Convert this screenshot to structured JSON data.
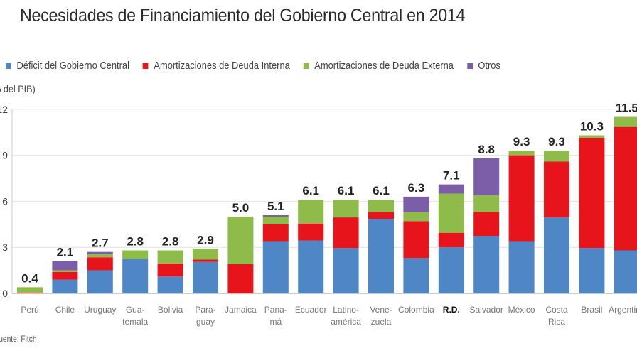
{
  "chart_data": {
    "type": "bar",
    "stacked": true,
    "title": "Necesidades de Financiamiento del Gobierno Central en 2014",
    "ylabel": "(% del PIB)",
    "source": "Fuente: Fitch",
    "ylim": [
      0,
      12
    ],
    "yticks": [
      0,
      3,
      6,
      9,
      12
    ],
    "grid": true,
    "legend_position": "top",
    "categories": [
      "Perú",
      "Chile",
      "Uruguay",
      "Gua-\ntemala",
      "Bolivia",
      "Para-\nguay",
      "Jamaica",
      "Pana-\nmá",
      "Ecuador",
      "Latino-\namérica",
      "Vene-\nzuela",
      "Colombia",
      "R.D.",
      "Salvador",
      "México",
      "Costa\nRica",
      "Brasil",
      "Argentina"
    ],
    "highlight_category": "R.D.",
    "totals": [
      "0.4",
      "2.1",
      "2.7",
      "2.8",
      "2.8",
      "2.9",
      "5.0",
      "5.1",
      "6.1",
      "6.1",
      "6.1",
      "6.3",
      "7.1",
      "8.8",
      "9.3",
      "9.3",
      "10.3",
      "11.5"
    ],
    "series": [
      {
        "name": "Déficit del Gobierno Central",
        "color": "#4f86c6",
        "values": [
          0,
          0.9,
          1.5,
          2.25,
          1.1,
          2.05,
          0,
          3.4,
          3.45,
          2.95,
          4.85,
          2.3,
          3.0,
          3.75,
          3.4,
          4.95,
          2.95,
          2.8
        ]
      },
      {
        "name": "Amortizaciones de Deuda Interna",
        "color": "#e8141c",
        "values": [
          0.05,
          0.5,
          0.85,
          0,
          0.85,
          0.15,
          1.9,
          1.1,
          1.1,
          2.0,
          0.45,
          2.4,
          0.95,
          1.55,
          5.6,
          3.65,
          7.2,
          8.05
        ]
      },
      {
        "name": "Amortizaciones de Deuda Externa",
        "color": "#8fbb4a",
        "values": [
          0.35,
          0.1,
          0.2,
          0.55,
          0.85,
          0.7,
          3.1,
          0.5,
          1.55,
          1.15,
          0.8,
          0.6,
          2.55,
          1.1,
          0.3,
          0.7,
          0.15,
          0.65
        ]
      },
      {
        "name": "Otros",
        "color": "#7b5ea7",
        "values": [
          0,
          0.6,
          0.15,
          0,
          0,
          0,
          0,
          0.1,
          0,
          0,
          0,
          1.0,
          0.6,
          2.4,
          0,
          0,
          0,
          0
        ]
      }
    ]
  }
}
